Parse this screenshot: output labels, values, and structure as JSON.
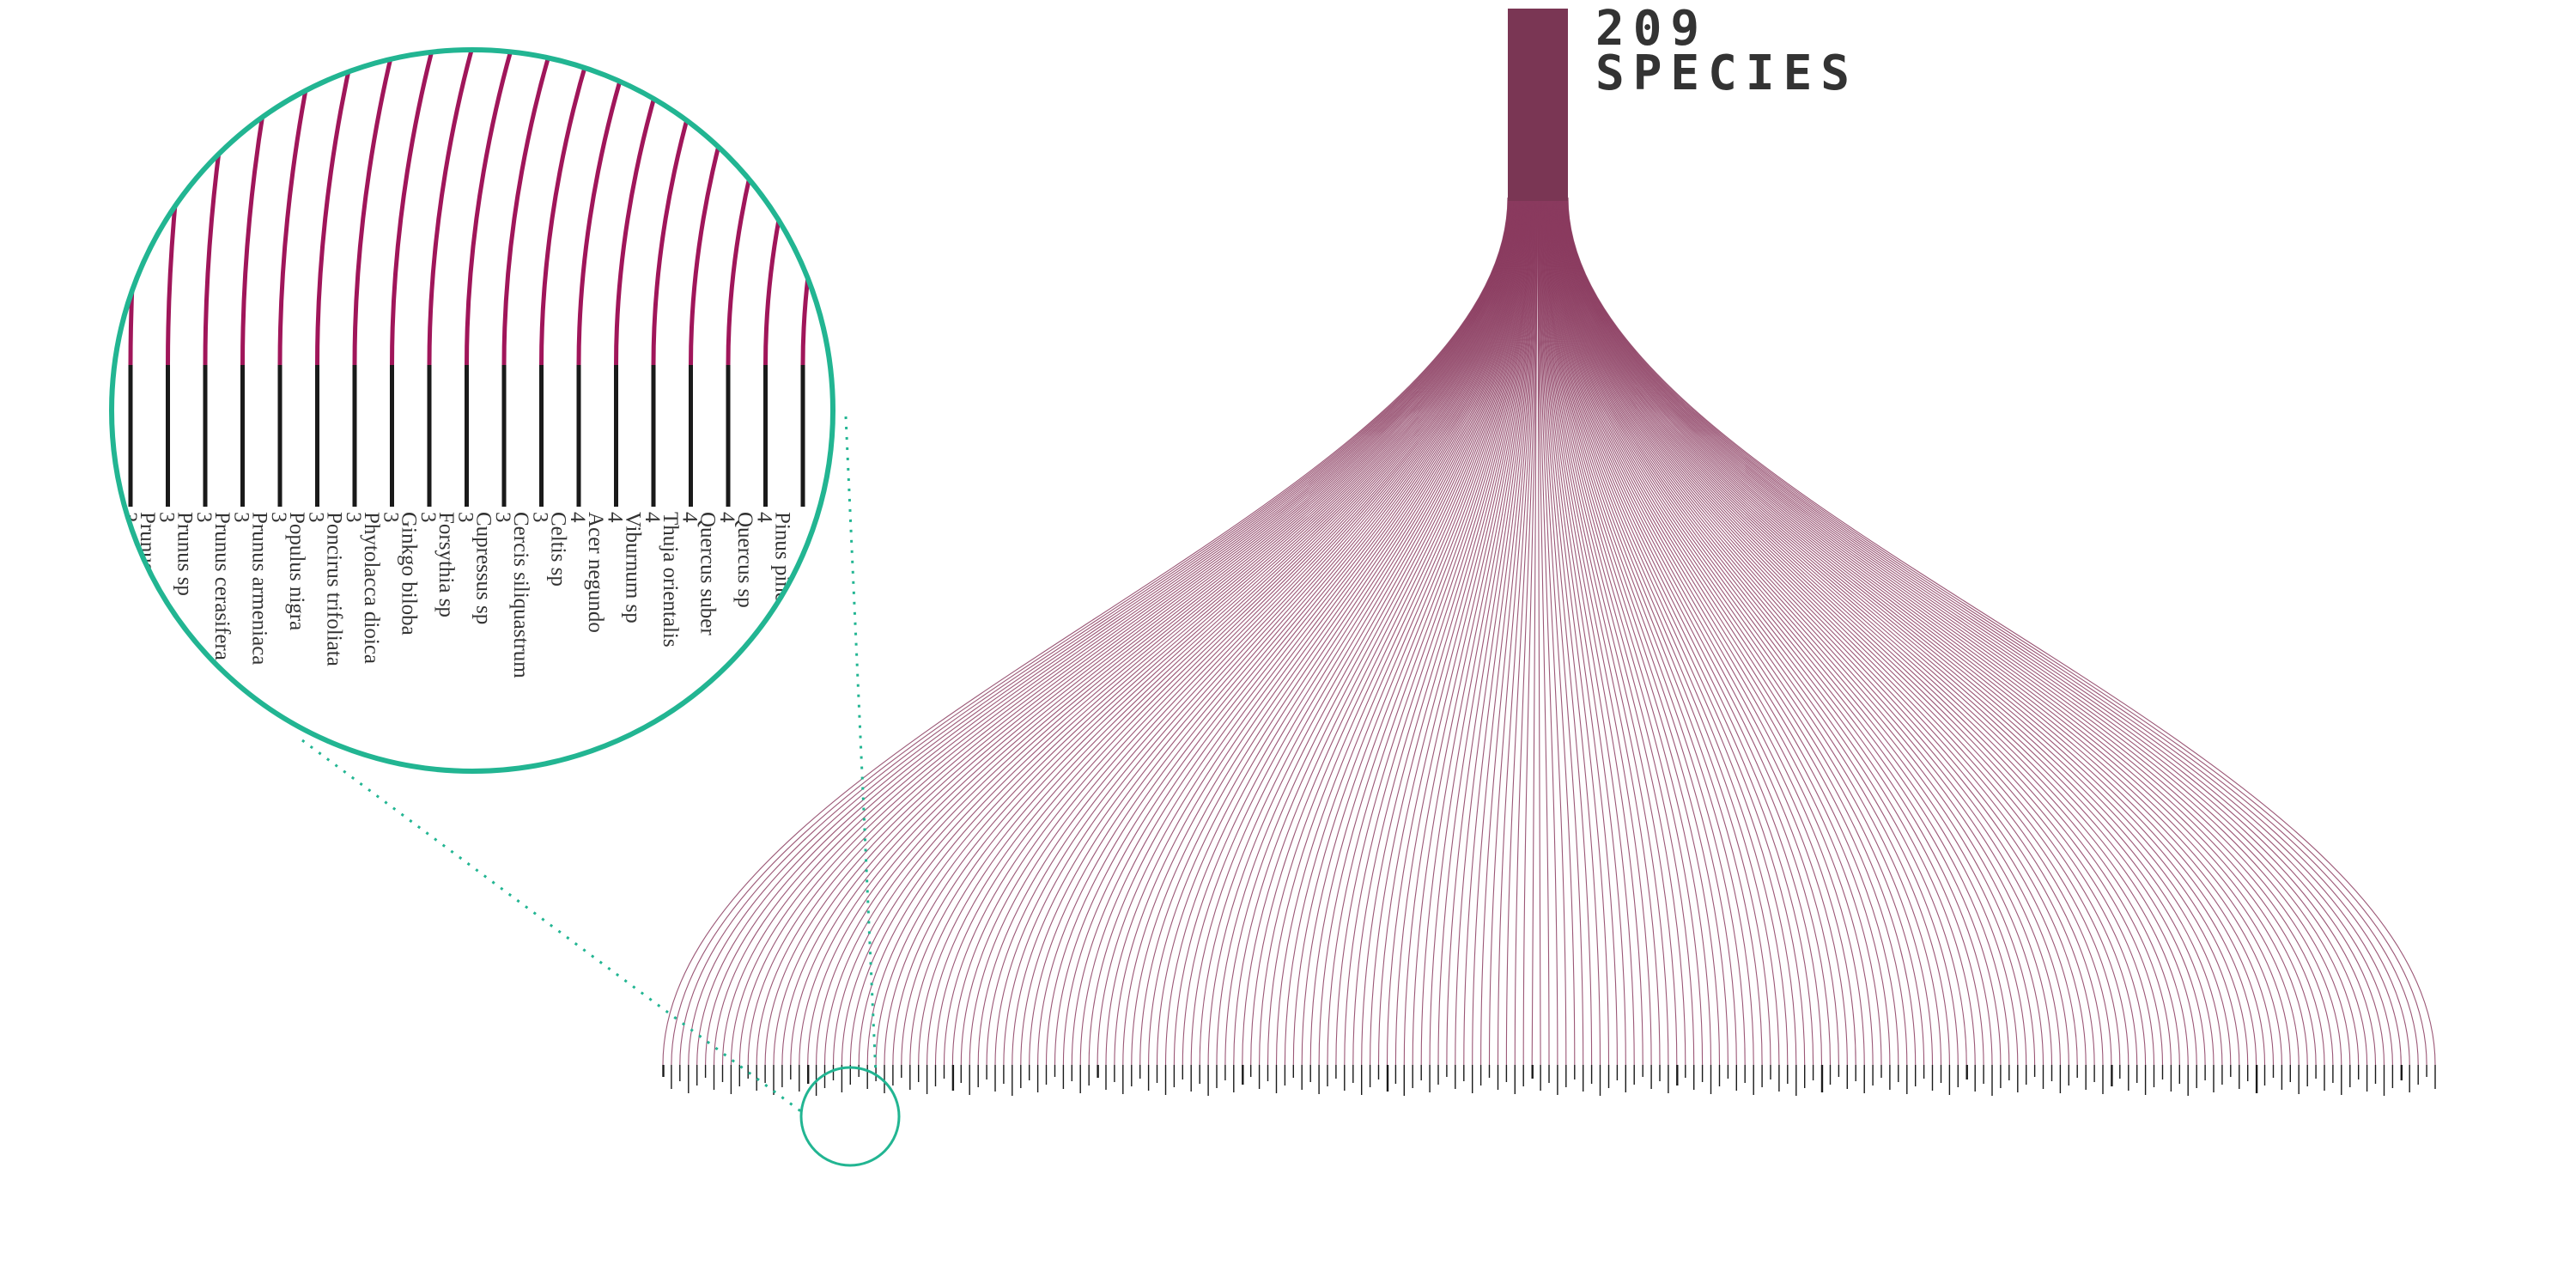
{
  "title": {
    "count": "209",
    "label": "SPECIES"
  },
  "colors": {
    "trunk": "#7a3654",
    "branch": "#8a3a5e",
    "branch_light": "#b9809a",
    "leaf_bar": "#1a1a1a",
    "zoom_circle": "#22b592",
    "zoom_branch": "#a0165a",
    "title_text": "#333333"
  },
  "chart_data": {
    "type": "tree",
    "root": "209 SPECIES",
    "leaf_count": 209,
    "zoomed_leaves": [
      {
        "name": "Prunus",
        "count": 3
      },
      {
        "name": "Prunus sp",
        "count": 3
      },
      {
        "name": "Prunus cerasifera",
        "count": 3
      },
      {
        "name": "Prunus armeniaca",
        "count": 3
      },
      {
        "name": "Populus nigra",
        "count": 3
      },
      {
        "name": "Poncirus trifoliata",
        "count": 3
      },
      {
        "name": "Phytolacca dioica",
        "count": 3
      },
      {
        "name": "Ginkgo biloba",
        "count": 3
      },
      {
        "name": "Forsythia sp",
        "count": 3
      },
      {
        "name": "Cupressus sp",
        "count": 3
      },
      {
        "name": "Cercis siliquastrum",
        "count": 3
      },
      {
        "name": "Celtis sp",
        "count": 3
      },
      {
        "name": "Acer negundo",
        "count": 4
      },
      {
        "name": "Viburnum sp",
        "count": 4
      },
      {
        "name": "Thuja orientalis",
        "count": 4
      },
      {
        "name": "Quercus suber",
        "count": 4
      },
      {
        "name": "Quercus sp",
        "count": 4
      },
      {
        "name": "Pinus pinea",
        "count": 4
      }
    ]
  }
}
